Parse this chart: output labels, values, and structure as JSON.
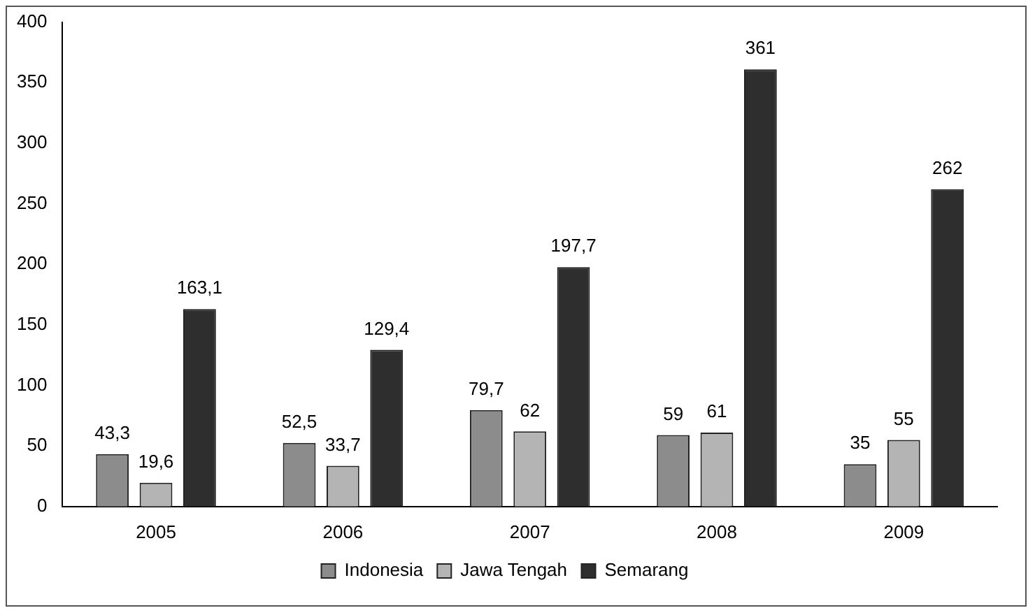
{
  "chart_data": {
    "type": "bar",
    "categories": [
      "2005",
      "2006",
      "2007",
      "2008",
      "2009"
    ],
    "series": [
      {
        "name": "Indonesia",
        "color": "#8c8c8c",
        "values": [
          43.3,
          52.5,
          79.7,
          59,
          35
        ],
        "value_labels": [
          "43,3",
          "52,5",
          "79,7",
          "59",
          "35"
        ]
      },
      {
        "name": "Jawa Tengah",
        "color": "#b4b4b4",
        "values": [
          19.6,
          33.7,
          62,
          61,
          55
        ],
        "value_labels": [
          "19,6",
          "33,7",
          "62",
          "61",
          "55"
        ]
      },
      {
        "name": "Semarang",
        "color": "#2e2e2e",
        "values": [
          163.1,
          129.4,
          197.7,
          361,
          262
        ],
        "value_labels": [
          "163,1",
          "129,4",
          "197,7",
          "361",
          "262"
        ]
      }
    ],
    "ylim": [
      0,
      400
    ],
    "yticks": [
      0,
      50,
      100,
      150,
      200,
      250,
      300,
      350,
      400
    ],
    "grid": false,
    "legend": "bottom"
  }
}
